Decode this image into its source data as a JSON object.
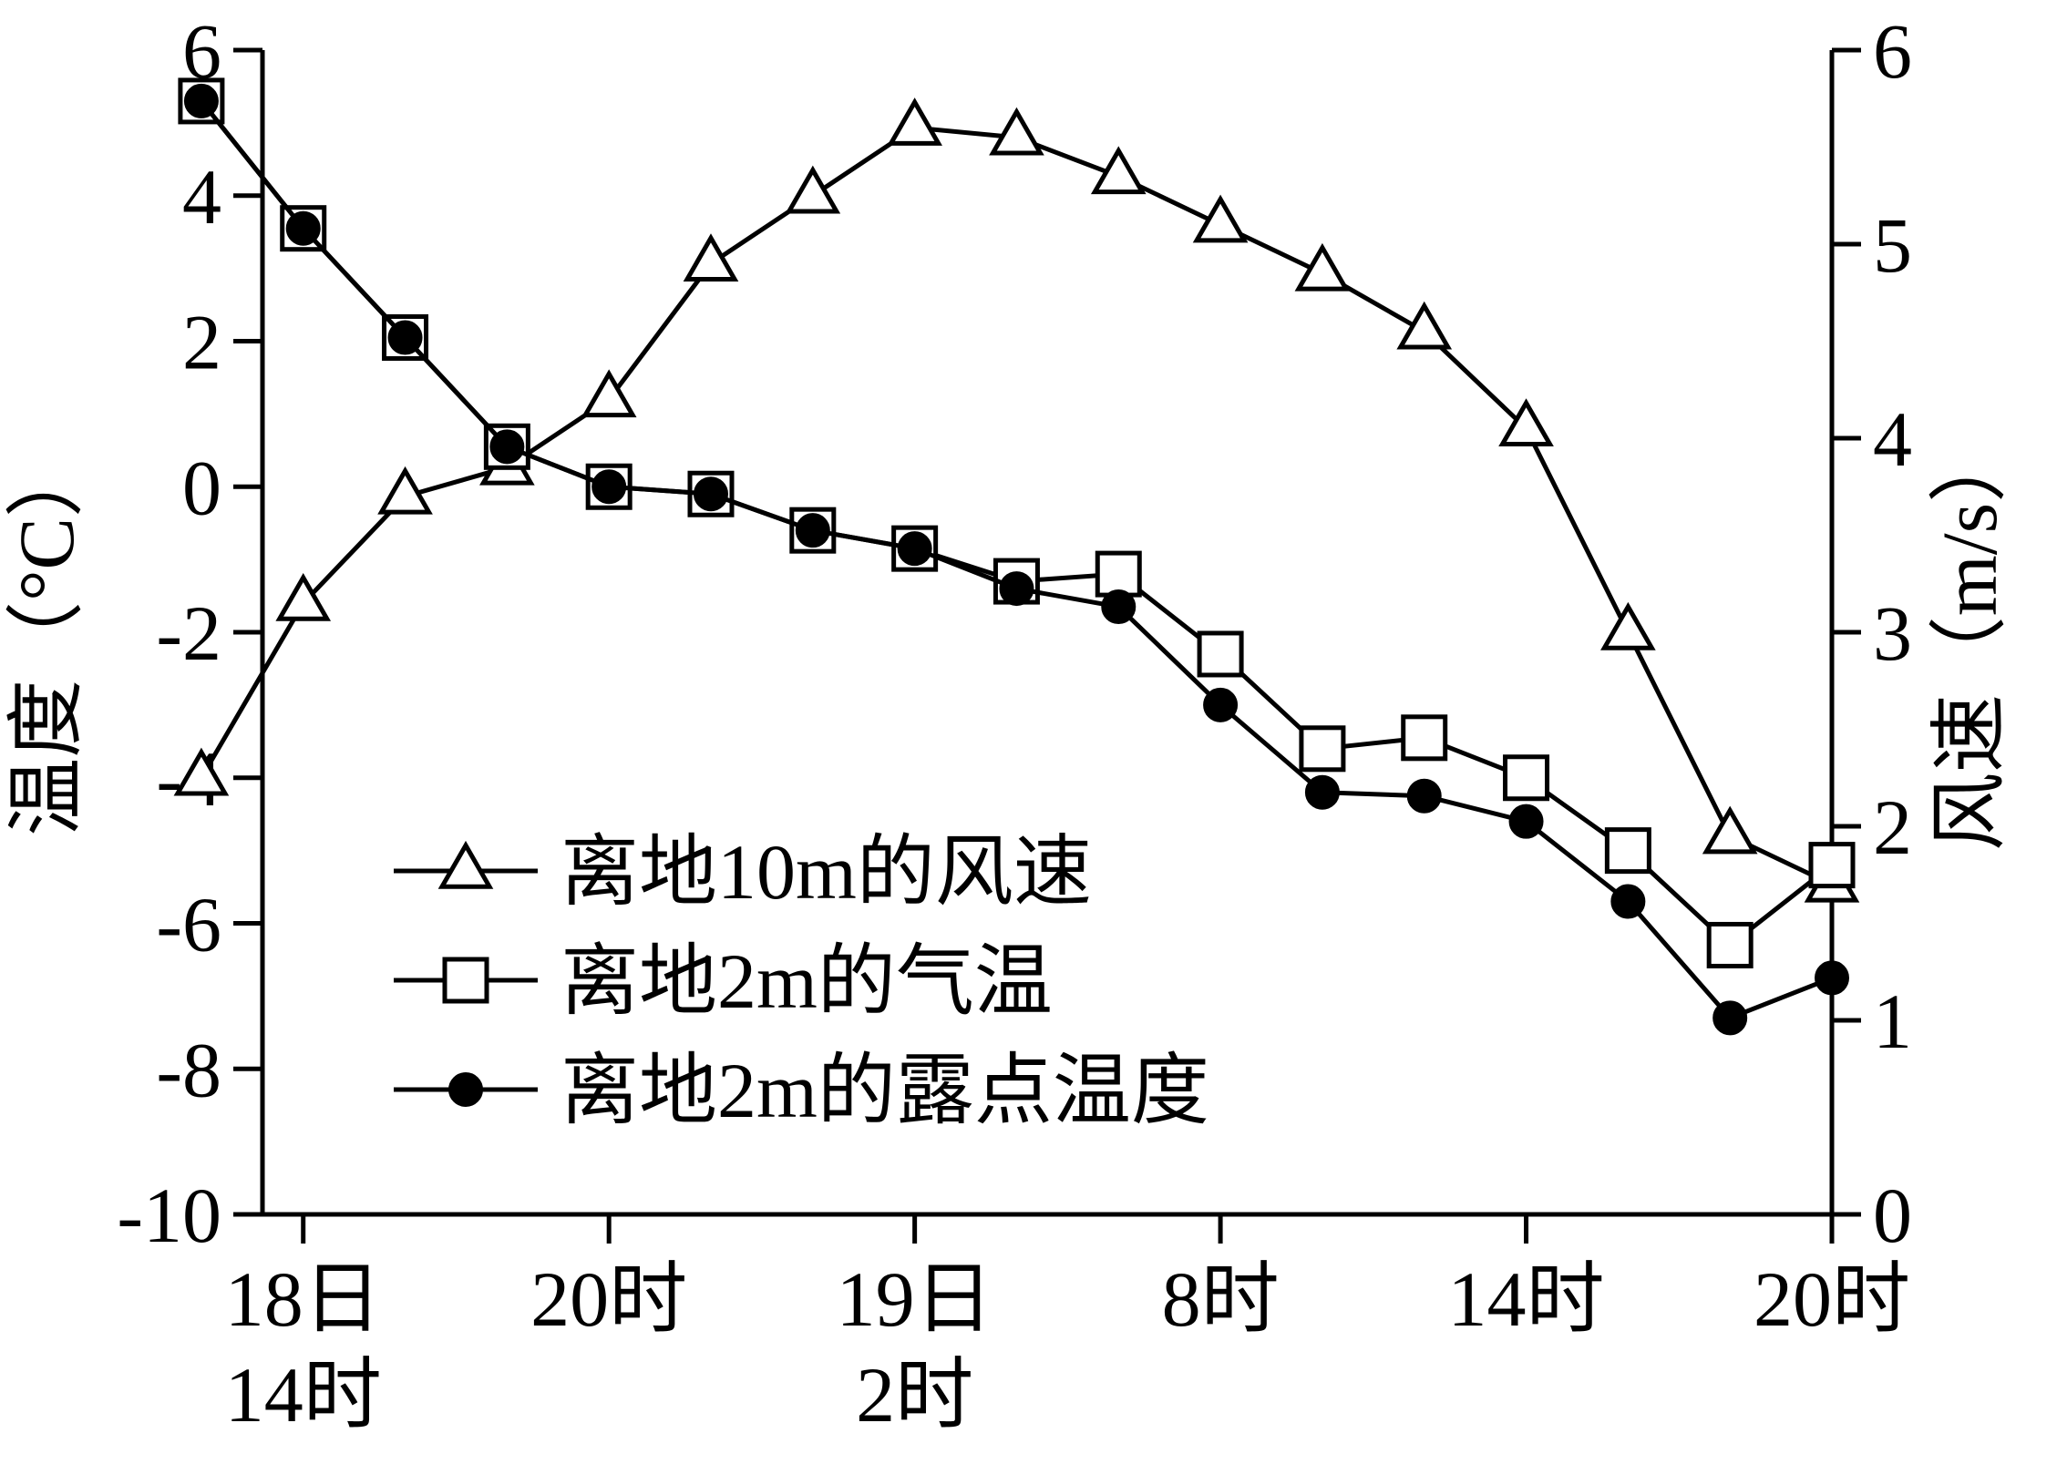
{
  "chart_data": {
    "type": "line",
    "x_labels": [
      {
        "index": 1,
        "lines": [
          "18日",
          "14时"
        ]
      },
      {
        "index": 4,
        "lines": [
          "20时"
        ]
      },
      {
        "index": 7,
        "lines": [
          "19日",
          "2时"
        ]
      },
      {
        "index": 10,
        "lines": [
          "8时"
        ]
      },
      {
        "index": 13,
        "lines": [
          "14时"
        ]
      },
      {
        "index": 16,
        "lines": [
          "20时"
        ]
      }
    ],
    "x_range": [
      0.6,
      16
    ],
    "ylabel_left": "温度（°C）",
    "ylabel_right": "风速（m/s）",
    "ylim_left": [
      -10,
      6
    ],
    "yticks_left": [
      6,
      4,
      2,
      0,
      -2,
      -4,
      -6,
      -8,
      -10
    ],
    "ylim_right": [
      0,
      6
    ],
    "yticks_right": [
      6,
      5,
      4,
      3,
      2,
      1,
      0
    ],
    "x": [
      0,
      1,
      2,
      3,
      4,
      5,
      6,
      7,
      8,
      9,
      10,
      11,
      12,
      13,
      14,
      15,
      16
    ],
    "series": [
      {
        "name": "离地10m的风速",
        "axis": "right",
        "marker": "open-triangle",
        "values": [
          2.25,
          3.15,
          3.7,
          3.85,
          4.2,
          4.9,
          5.25,
          5.6,
          5.55,
          5.35,
          5.1,
          4.85,
          4.55,
          4.05,
          3.0,
          1.95,
          1.7
        ]
      },
      {
        "name": "离地2m的气温",
        "axis": "left",
        "marker": "open-square",
        "values": [
          5.3,
          3.55,
          2.05,
          0.55,
          0.0,
          -0.1,
          -0.6,
          -0.85,
          -1.3,
          -1.2,
          -2.3,
          -3.6,
          -3.45,
          -4.0,
          -5.0,
          -6.3,
          -5.2
        ]
      },
      {
        "name": "离地2m的露点温度",
        "axis": "left",
        "marker": "filled-circle",
        "values": [
          5.3,
          3.55,
          2.05,
          0.55,
          0.0,
          -0.1,
          -0.6,
          -0.85,
          -1.4,
          -1.65,
          -3.0,
          -4.2,
          -4.25,
          -4.6,
          -5.7,
          -7.3,
          -6.75
        ]
      }
    ],
    "legend": {
      "placement": "lower-left",
      "entries": [
        "离地10m的风速",
        "离地2m的气温",
        "离地2m的露点温度"
      ]
    },
    "grid": false
  }
}
